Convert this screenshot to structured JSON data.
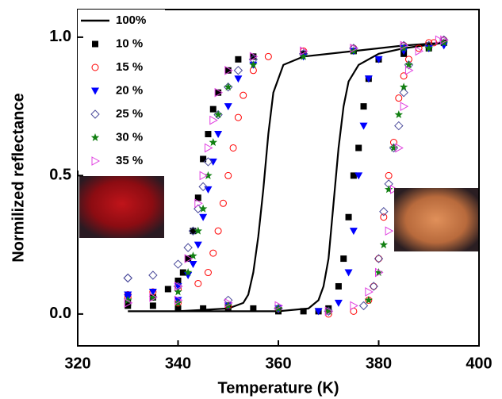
{
  "chart_data": {
    "type": "scatter",
    "x_label": "Temperature (K)",
    "y_label": "Normilized reflectance",
    "xlim": [
      320,
      400
    ],
    "ylim": [
      -0.115,
      1.1
    ],
    "xticks": [
      320,
      340,
      360,
      380,
      400
    ],
    "yticks": [
      {
        "value": 0,
        "label": "0.0"
      },
      {
        "value": 0.5,
        "label": "0.5"
      },
      {
        "value": 1,
        "label": "1.0"
      }
    ],
    "legend": "upper left",
    "series": [
      {
        "name": "100%",
        "color": "#000000",
        "marker": "line",
        "x": [
          330,
          340,
          350,
          360,
          366,
          368,
          369,
          370,
          371,
          372,
          373,
          374,
          376,
          380,
          385,
          393,
          385,
          375,
          365,
          361,
          359,
          358,
          357,
          356,
          355,
          354,
          353,
          350,
          340,
          330
        ],
        "values": [
          0.01,
          0.01,
          0.01,
          0.01,
          0.02,
          0.05,
          0.1,
          0.2,
          0.4,
          0.6,
          0.75,
          0.84,
          0.9,
          0.94,
          0.96,
          0.98,
          0.97,
          0.95,
          0.93,
          0.9,
          0.8,
          0.65,
          0.45,
          0.28,
          0.15,
          0.07,
          0.04,
          0.02,
          0.01,
          0.01
        ]
      },
      {
        "name": "10 %",
        "color": "#000000",
        "marker": "square",
        "x": [
          330,
          335,
          340,
          345,
          350,
          355,
          360,
          365,
          368,
          370,
          372,
          373,
          374,
          375,
          376,
          377,
          378,
          380,
          385,
          390,
          393,
          390,
          385,
          375,
          365,
          355,
          352,
          350,
          348,
          347,
          346,
          345,
          344,
          343,
          342,
          341,
          340,
          338,
          335,
          330
        ],
        "values": [
          0.03,
          0.03,
          0.02,
          0.02,
          0.02,
          0.02,
          0.01,
          0.01,
          0.01,
          0.02,
          0.1,
          0.2,
          0.35,
          0.5,
          0.6,
          0.75,
          0.85,
          0.92,
          0.94,
          0.96,
          0.98,
          0.97,
          0.96,
          0.95,
          0.94,
          0.93,
          0.92,
          0.88,
          0.8,
          0.74,
          0.65,
          0.56,
          0.42,
          0.3,
          0.2,
          0.15,
          0.12,
          0.09,
          0.06,
          0.04
        ]
      },
      {
        "name": "15 %",
        "color": "#ff0000",
        "marker": "circle",
        "x": [
          330,
          340,
          350,
          360,
          370,
          375,
          378,
          379,
          380,
          381,
          382,
          383,
          384,
          385,
          386,
          388,
          391,
          393,
          390,
          385,
          375,
          365,
          358,
          355,
          353,
          352,
          351,
          350,
          349,
          348,
          347,
          346,
          344,
          340,
          335,
          330
        ],
        "values": [
          0.06,
          0.04,
          0.03,
          0.02,
          0.0,
          0.01,
          0.05,
          0.1,
          0.2,
          0.35,
          0.5,
          0.62,
          0.78,
          0.86,
          0.92,
          0.96,
          0.98,
          0.99,
          0.98,
          0.97,
          0.96,
          0.95,
          0.93,
          0.88,
          0.79,
          0.71,
          0.6,
          0.5,
          0.4,
          0.3,
          0.22,
          0.15,
          0.11,
          0.09,
          0.08,
          0.07
        ]
      },
      {
        "name": "20 %",
        "color": "#0000ff",
        "marker": "triangle-down",
        "x": [
          330,
          340,
          350,
          360,
          368,
          372,
          374,
          375,
          376,
          377,
          378,
          380,
          385,
          390,
          393,
          385,
          375,
          365,
          355,
          352,
          350,
          348,
          347,
          346,
          345,
          344,
          343,
          342,
          340,
          335,
          330
        ],
        "values": [
          0.06,
          0.05,
          0.03,
          0.02,
          0.01,
          0.04,
          0.15,
          0.3,
          0.5,
          0.68,
          0.85,
          0.92,
          0.95,
          0.96,
          0.97,
          0.96,
          0.95,
          0.93,
          0.9,
          0.85,
          0.75,
          0.65,
          0.55,
          0.45,
          0.35,
          0.25,
          0.18,
          0.14,
          0.1,
          0.08,
          0.07
        ]
      },
      {
        "name": "25 %",
        "color": "#4b4b9b",
        "marker": "diamond",
        "x": [
          330,
          340,
          350,
          360,
          370,
          377,
          379,
          380,
          381,
          382,
          383,
          384,
          385,
          386,
          390,
          393,
          385,
          375,
          365,
          355,
          352,
          350,
          348,
          346,
          345,
          344,
          343,
          342,
          340,
          335,
          330
        ],
        "values": [
          0.13,
          0.1,
          0.05,
          0.02,
          0.01,
          0.03,
          0.1,
          0.2,
          0.37,
          0.47,
          0.6,
          0.68,
          0.8,
          0.9,
          0.97,
          0.99,
          0.97,
          0.96,
          0.94,
          0.92,
          0.88,
          0.82,
          0.72,
          0.55,
          0.46,
          0.38,
          0.3,
          0.24,
          0.18,
          0.14,
          0.13
        ]
      },
      {
        "name": "30 %",
        "color": "#128012",
        "marker": "star",
        "x": [
          330,
          340,
          350,
          360,
          370,
          378,
          380,
          381,
          382,
          383,
          384,
          385,
          386,
          390,
          393,
          385,
          375,
          365,
          355,
          350,
          348,
          347,
          346,
          345,
          344,
          343,
          342,
          340,
          335,
          330
        ],
        "values": [
          0.05,
          0.04,
          0.03,
          0.02,
          0.01,
          0.05,
          0.15,
          0.25,
          0.45,
          0.6,
          0.72,
          0.82,
          0.9,
          0.96,
          0.98,
          0.96,
          0.95,
          0.93,
          0.9,
          0.82,
          0.72,
          0.62,
          0.5,
          0.38,
          0.3,
          0.21,
          0.15,
          0.08,
          0.06,
          0.05
        ]
      },
      {
        "name": "35 %",
        "color": "#e040e0",
        "marker": "triangle-right",
        "x": [
          330,
          340,
          350,
          360,
          370,
          375,
          378,
          380,
          382,
          383,
          384,
          385,
          386,
          388,
          392,
          393,
          385,
          375,
          365,
          355,
          350,
          348,
          347,
          346,
          345,
          344,
          342,
          340,
          335,
          330
        ],
        "values": [
          0.04,
          0.05,
          0.04,
          0.03,
          0.01,
          0.03,
          0.08,
          0.15,
          0.3,
          0.45,
          0.6,
          0.75,
          0.88,
          0.95,
          0.99,
          0.99,
          0.97,
          0.96,
          0.95,
          0.93,
          0.88,
          0.8,
          0.7,
          0.6,
          0.5,
          0.4,
          0.2,
          0.1,
          0.06,
          0.04
        ]
      }
    ]
  }
}
